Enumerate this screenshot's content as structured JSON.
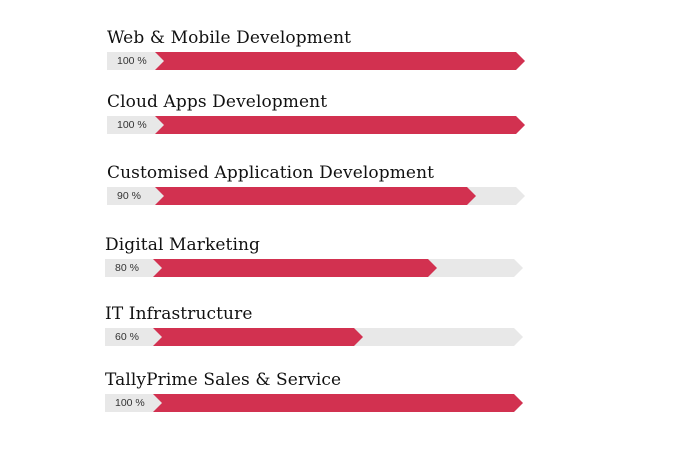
{
  "skills": [
    {
      "label": "Web & Mobile Development",
      "percent": 100,
      "percent_text": "100 %"
    },
    {
      "label": "Cloud Apps Development",
      "percent": 100,
      "percent_text": "100 %"
    },
    {
      "label": "Customised Application Development",
      "percent": 90,
      "percent_text": "90 %"
    },
    {
      "label": "Digital Marketing",
      "percent": 80,
      "percent_text": "80 %"
    },
    {
      "label": "IT Infrastructure",
      "percent": 60,
      "percent_text": "60 %"
    },
    {
      "label": "TallyPrime Sales & Service",
      "percent": 100,
      "percent_text": "100 %"
    }
  ],
  "colors": {
    "fill": "#d23150",
    "track": "#e8e8e8",
    "text": "#111111"
  }
}
